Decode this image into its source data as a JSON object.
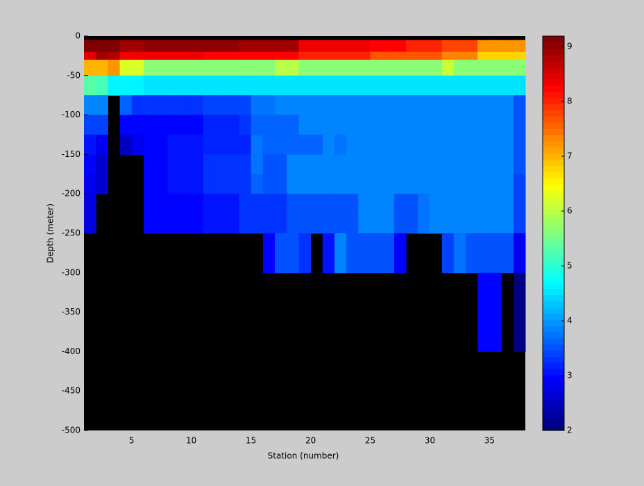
{
  "chart_data": {
    "type": "heatmap",
    "xlabel": "Station (number)",
    "ylabel": "Depth (meter)",
    "x": [
      1,
      2,
      3,
      4,
      5,
      6,
      7,
      8,
      9,
      10,
      11,
      12,
      13,
      14,
      15,
      16,
      17,
      18,
      19,
      20,
      21,
      22,
      23,
      24,
      25,
      26,
      27,
      28,
      29,
      30,
      31,
      32,
      33,
      34,
      35,
      36,
      37,
      38
    ],
    "y": [
      0,
      -5,
      -20,
      -30,
      -50,
      -75,
      -100,
      -125,
      -150,
      -175,
      -200,
      -225,
      -250,
      -300,
      -400,
      -500
    ],
    "z": [
      [
        null,
        null,
        null,
        null,
        null,
        null,
        null,
        null,
        null,
        null,
        null,
        null,
        null,
        null,
        null,
        null,
        null,
        null,
        null,
        null,
        null,
        null,
        null,
        null,
        null,
        null,
        null,
        null,
        null,
        null,
        null,
        null,
        null,
        null,
        null,
        null,
        null
      ],
      [
        9.1,
        9.1,
        9.1,
        8.9,
        8.9,
        9.0,
        9.0,
        9.0,
        9.0,
        9.0,
        9.0,
        9.0,
        9.0,
        8.9,
        8.9,
        8.9,
        8.9,
        8.9,
        8.4,
        8.4,
        8.4,
        8.4,
        8.4,
        8.4,
        8.2,
        8.2,
        8.2,
        8.0,
        8.0,
        8.0,
        7.8,
        7.8,
        7.8,
        7.2,
        7.2,
        7.2,
        7.2
      ],
      [
        8.5,
        8.9,
        8.8,
        8.3,
        8.3,
        8.3,
        8.3,
        8.3,
        8.3,
        8.3,
        8.2,
        8.2,
        8.2,
        8.2,
        8.2,
        8.2,
        8.2,
        8.2,
        8.0,
        8.0,
        8.0,
        8.0,
        8.0,
        8.0,
        7.7,
        7.7,
        7.7,
        7.7,
        7.7,
        7.7,
        7.3,
        7.3,
        7.3,
        6.8,
        6.8,
        6.8,
        6.8
      ],
      [
        7.0,
        7.0,
        7.2,
        6.2,
        6.2,
        5.6,
        5.6,
        5.6,
        5.6,
        5.6,
        5.6,
        5.6,
        5.6,
        5.6,
        5.6,
        5.6,
        6.0,
        6.0,
        5.7,
        5.7,
        5.7,
        5.7,
        5.7,
        5.7,
        5.7,
        5.7,
        5.7,
        5.7,
        5.7,
        5.7,
        6.1,
        5.6,
        5.6,
        5.6,
        5.6,
        5.6,
        5.6
      ],
      [
        5.3,
        5.2,
        4.6,
        4.6,
        4.6,
        4.5,
        4.5,
        4.5,
        4.5,
        4.5,
        4.5,
        4.5,
        4.5,
        4.5,
        4.5,
        4.5,
        4.5,
        4.5,
        4.5,
        4.5,
        4.5,
        4.5,
        4.5,
        4.5,
        4.5,
        4.5,
        4.5,
        4.5,
        4.5,
        4.5,
        4.5,
        4.5,
        4.5,
        4.5,
        4.5,
        4.5,
        4.5
      ],
      [
        3.9,
        3.9,
        null,
        3.6,
        3.3,
        3.3,
        3.3,
        3.3,
        3.3,
        3.3,
        3.4,
        3.4,
        3.4,
        3.4,
        3.7,
        3.7,
        3.9,
        3.9,
        3.9,
        3.8,
        3.9,
        3.9,
        3.9,
        3.9,
        3.9,
        3.9,
        3.9,
        3.9,
        3.9,
        3.9,
        3.9,
        3.9,
        3.9,
        3.9,
        3.9,
        3.9,
        3.5
      ],
      [
        3.4,
        3.4,
        null,
        3.0,
        2.9,
        3.0,
        3.0,
        3.0,
        3.0,
        3.0,
        3.2,
        3.2,
        3.2,
        3.3,
        3.6,
        3.6,
        3.6,
        3.6,
        3.8,
        3.8,
        3.8,
        3.8,
        3.8,
        3.8,
        3.8,
        3.8,
        3.8,
        3.8,
        3.8,
        3.8,
        3.8,
        3.8,
        3.8,
        3.8,
        3.8,
        3.8,
        3.5
      ],
      [
        3.1,
        2.8,
        null,
        2.5,
        2.8,
        3.0,
        2.9,
        3.1,
        3.1,
        3.1,
        3.2,
        3.2,
        3.2,
        3.2,
        3.7,
        3.6,
        3.6,
        3.6,
        3.6,
        3.6,
        3.8,
        3.7,
        3.9,
        3.9,
        3.9,
        3.9,
        3.9,
        3.9,
        3.9,
        3.9,
        3.9,
        3.9,
        3.9,
        3.9,
        3.9,
        3.9,
        3.5
      ],
      [
        2.9,
        2.6,
        null,
        null,
        null,
        3.0,
        2.9,
        3.1,
        3.1,
        3.1,
        3.3,
        3.3,
        3.3,
        3.3,
        3.7,
        3.5,
        3.5,
        3.9,
        3.9,
        3.9,
        3.9,
        3.9,
        3.9,
        3.9,
        3.9,
        3.9,
        3.9,
        3.9,
        3.9,
        3.9,
        3.9,
        3.9,
        3.9,
        3.9,
        3.9,
        3.9,
        3.5
      ],
      [
        2.8,
        2.6,
        null,
        null,
        null,
        3.0,
        2.9,
        3.1,
        3.1,
        3.1,
        3.3,
        3.3,
        3.3,
        3.3,
        3.6,
        3.5,
        3.5,
        3.8,
        3.8,
        3.8,
        3.8,
        3.8,
        3.8,
        3.8,
        3.8,
        3.8,
        3.8,
        3.8,
        3.8,
        3.8,
        3.8,
        3.8,
        3.8,
        3.8,
        3.8,
        3.8,
        3.4
      ],
      [
        2.7,
        null,
        null,
        null,
        null,
        2.9,
        2.9,
        2.9,
        2.9,
        2.9,
        3.1,
        3.1,
        3.1,
        3.3,
        3.3,
        3.3,
        3.3,
        3.5,
        3.5,
        3.5,
        3.5,
        3.5,
        3.5,
        3.8,
        3.8,
        3.8,
        3.5,
        3.5,
        3.7,
        3.8,
        3.8,
        3.8,
        3.8,
        3.8,
        3.8,
        3.8,
        3.4
      ],
      [
        2.7,
        null,
        null,
        null,
        null,
        2.9,
        2.9,
        2.9,
        2.9,
        2.9,
        3.1,
        3.1,
        3.1,
        3.3,
        3.3,
        3.3,
        3.3,
        3.5,
        3.5,
        3.5,
        3.5,
        3.5,
        3.5,
        3.8,
        3.8,
        3.8,
        3.5,
        3.5,
        3.7,
        3.8,
        3.8,
        3.8,
        3.8,
        3.8,
        3.8,
        3.8,
        3.4
      ],
      [
        null,
        null,
        null,
        null,
        null,
        null,
        null,
        null,
        null,
        null,
        null,
        null,
        null,
        null,
        null,
        3.0,
        3.5,
        3.5,
        3.3,
        null,
        3.1,
        3.8,
        3.5,
        3.5,
        3.5,
        3.5,
        3.0,
        null,
        null,
        null,
        3.4,
        3.7,
        3.5,
        3.5,
        3.5,
        3.5,
        2.8
      ],
      [
        null,
        null,
        null,
        null,
        null,
        null,
        null,
        null,
        null,
        null,
        null,
        null,
        null,
        null,
        null,
        null,
        null,
        null,
        null,
        null,
        null,
        null,
        null,
        null,
        null,
        null,
        null,
        null,
        null,
        null,
        null,
        null,
        null,
        2.9,
        2.9,
        null,
        2.1
      ],
      [
        null,
        null,
        null,
        null,
        null,
        null,
        null,
        null,
        null,
        null,
        null,
        null,
        null,
        null,
        null,
        null,
        null,
        null,
        null,
        null,
        null,
        null,
        null,
        null,
        null,
        null,
        null,
        null,
        null,
        null,
        null,
        null,
        null,
        null,
        null,
        null,
        null
      ]
    ],
    "xlim": [
      1,
      38
    ],
    "xticks": [
      5,
      10,
      15,
      20,
      25,
      30,
      35
    ],
    "ylim": [
      -500,
      0
    ],
    "yticks": [
      0,
      -50,
      -100,
      -150,
      -200,
      -250,
      -300,
      -350,
      -400,
      -450,
      -500
    ],
    "clim": [
      2,
      9.19
    ],
    "cticks": [
      2,
      3,
      4,
      5,
      6,
      7,
      8,
      9
    ],
    "colormap": "jet",
    "axes_color": "#000000"
  }
}
